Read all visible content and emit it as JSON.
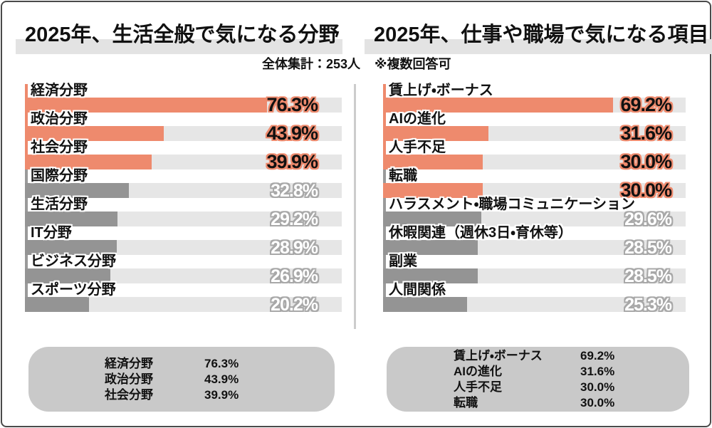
{
  "colors": {
    "orange": "#ee8a6d",
    "gray_fill": "#949494",
    "track": "#e6e6e6",
    "title_highlight": "#e3e3e3",
    "summary_bg": "#c9c9c9",
    "divider": "#cccccc",
    "border": "#4a4a4a",
    "text": "#111111"
  },
  "header": {
    "title_left": "2025年、生活全般で気になる分野",
    "title_right": "2025年、仕事や職場で気になる項目",
    "total_label": "全体集計：253人",
    "note_label": "※複数回答可"
  },
  "chart_data": [
    {
      "type": "bar",
      "orientation": "horizontal",
      "title": "2025年、生活全般で気になる分野",
      "categories": [
        "経済分野",
        "政治分野",
        "社会分野",
        "国際分野",
        "生活分野",
        "IT分野",
        "ビジネス分野",
        "スポーツ分野"
      ],
      "values": [
        76.3,
        43.9,
        39.9,
        32.8,
        29.2,
        28.9,
        26.9,
        20.2
      ],
      "highlighted": [
        true,
        true,
        true,
        false,
        false,
        false,
        false,
        false
      ],
      "tick_highlighted": [
        true,
        true,
        true,
        false,
        false,
        false,
        false,
        false
      ],
      "value_suffix": "%",
      "xlim": [
        0,
        100
      ],
      "axis_max": 100,
      "grid": false,
      "legend": false
    },
    {
      "type": "bar",
      "orientation": "horizontal",
      "title": "2025年、仕事や職場で気になる項目",
      "categories": [
        "賃上げ・ボーナス",
        "AIの進化",
        "人手不足",
        "転職",
        "ハラスメント・職場コミュニケーション",
        "休暇関連（週休3日・育休等）",
        "副業",
        "人間関係"
      ],
      "values": [
        69.2,
        31.6,
        30.0,
        30.0,
        29.6,
        28.5,
        28.5,
        25.3
      ],
      "highlighted": [
        true,
        true,
        true,
        true,
        false,
        false,
        false,
        false
      ],
      "tick_highlighted": [
        true,
        true,
        true,
        false,
        false,
        false,
        false,
        false
      ],
      "value_suffix": "%",
      "xlim": [
        0,
        100
      ],
      "axis_max": 91,
      "grid": false,
      "legend": false
    }
  ],
  "summaries": [
    {
      "rows": [
        {
          "label": "経済分野",
          "value": "76.3%"
        },
        {
          "label": "政治分野",
          "value": "43.9%"
        },
        {
          "label": "社会分野",
          "value": "39.9%"
        }
      ]
    },
    {
      "rows": [
        {
          "label": "賃上げ・ボーナス",
          "value": "69.2%"
        },
        {
          "label": "AIの進化",
          "value": "31.6%"
        },
        {
          "label": "人手不足",
          "value": "30.0%"
        },
        {
          "label": "転職",
          "value": "30.0%"
        }
      ]
    }
  ]
}
